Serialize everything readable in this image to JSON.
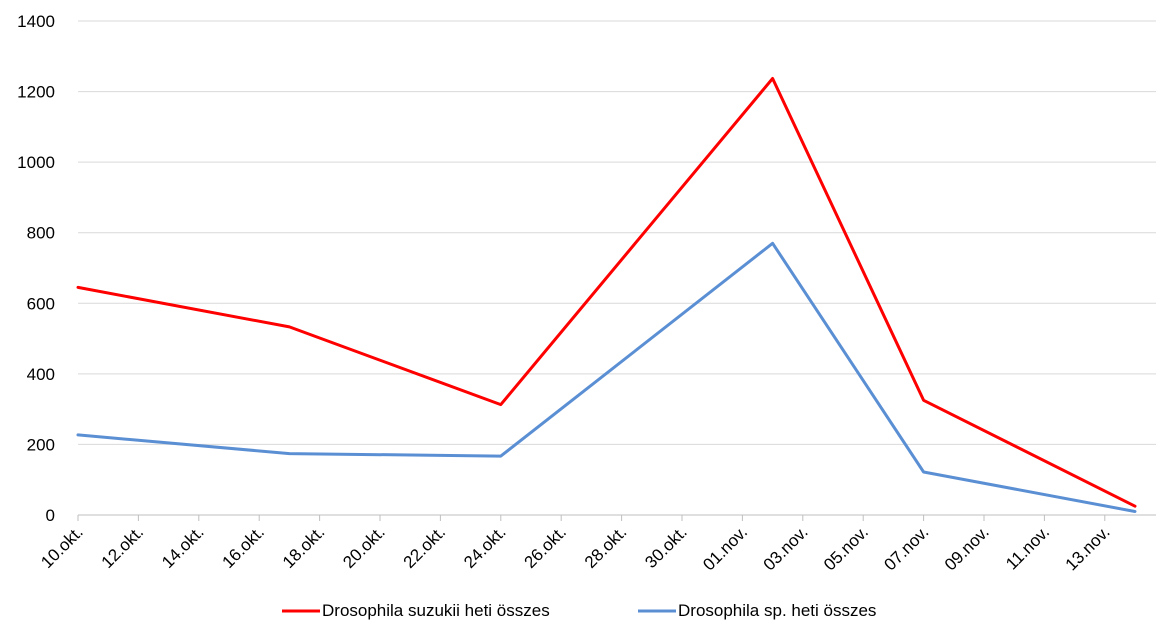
{
  "chart_data": {
    "type": "line",
    "title": "",
    "xlabel": "",
    "ylabel": "",
    "ylim": [
      0,
      1400
    ],
    "yticks": [
      0,
      200,
      400,
      600,
      800,
      1000,
      1200,
      1400
    ],
    "grid": true,
    "legend_position": "bottom",
    "x_tick_labels": [
      "10.okt.",
      "12.okt.",
      "14.okt.",
      "16.okt.",
      "18.okt.",
      "20.okt.",
      "22.okt.",
      "24.okt.",
      "26.okt.",
      "28.okt.",
      "30.okt.",
      "01.nov.",
      "03.nov.",
      "05.nov.",
      "07.nov.",
      "09.nov.",
      "11.nov.",
      "13.nov."
    ],
    "x_dates": [
      "10.okt.",
      "17.okt.",
      "24.okt.",
      "02.nov.",
      "07.nov.",
      "14.nov."
    ],
    "series": [
      {
        "name": "Drosophila suzukii heti összes",
        "color": "#ff0000",
        "values": [
          645,
          533,
          313,
          1237,
          325,
          25
        ]
      },
      {
        "name": "Drosophila sp. heti összes",
        "color": "#5b8fd4",
        "values": [
          227,
          174,
          167,
          770,
          122,
          10
        ]
      }
    ]
  }
}
